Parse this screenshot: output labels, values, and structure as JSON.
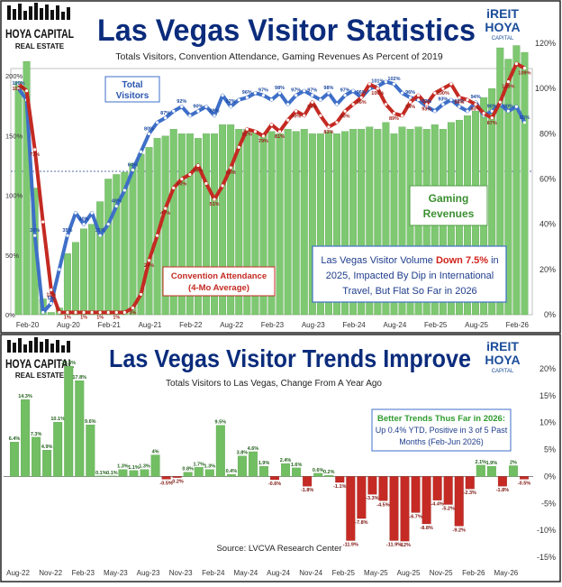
{
  "branding": {
    "logo_main": "HOYA CAPITAL",
    "logo_sub": "REAL ESTATE",
    "ireit_line1": "iREIT",
    "ireit_line2": "HOYA",
    "ireit_sub": "CAPITAL"
  },
  "colors": {
    "title": "#0b2c7c",
    "gaming_green": "#7ec871",
    "gaming_edge": "#4f9c43",
    "visitors_blue": "#3e6fc8",
    "convention_red": "#c42a22",
    "trend_green": "#72be63",
    "trend_red": "#c62a24",
    "annotation": "#1f3d8c",
    "highlight_red": "#d0241c",
    "trend_highlight_green": "#2f9b2f"
  },
  "chart_data": [
    {
      "type": "bar",
      "title": "Las Vegas Visitor Statistics",
      "subtitle": "Totals Visitors, Convention Attendance, Gaming Revenues As Percent of 2019",
      "x_tick_labels": [
        "Feb-20",
        "Aug-20",
        "Feb-21",
        "Aug-21",
        "Feb-22",
        "Aug-22",
        "Feb-23",
        "Aug-23",
        "Feb-24",
        "Aug-24",
        "Feb-25",
        "Aug-25",
        "Feb-26"
      ],
      "left_axis": {
        "ticks": [
          "0%",
          "50%",
          "100%",
          "150%",
          "200%"
        ],
        "range": [
          0,
          200
        ]
      },
      "right_axis": {
        "ticks": [
          "0%",
          "20%",
          "40%",
          "60%",
          "80%",
          "100%",
          "120%"
        ],
        "range": [
          0,
          120
        ]
      },
      "reference_line_left_value": 120,
      "series": [
        {
          "name": "Gaming Revenues",
          "kind": "bar",
          "axis": "right",
          "values": [
            103,
            112,
            56,
            7,
            1,
            3,
            27,
            32,
            38,
            40,
            50,
            60,
            62,
            63,
            67,
            71,
            74,
            78,
            79,
            82,
            80,
            80,
            78,
            80,
            80,
            84,
            84,
            82,
            82,
            81,
            80,
            81,
            80,
            82,
            81,
            82,
            80,
            80,
            81,
            80,
            81,
            82,
            82,
            83,
            82,
            85,
            80,
            83,
            82,
            83,
            82,
            84,
            82,
            85,
            86,
            88,
            90,
            96,
            100,
            118,
            113,
            119,
            116
          ]
        },
        {
          "name": "Total Visitors",
          "kind": "line",
          "axis": "right",
          "values": [
            100,
            95,
            35,
            1,
            5,
            20,
            35,
            45,
            40,
            45,
            35,
            40,
            48,
            55,
            64,
            72,
            80,
            85,
            87,
            90,
            92,
            88,
            90,
            92,
            88,
            97,
            92,
            95,
            96,
            98,
            97,
            95,
            98,
            93,
            97,
            99,
            97,
            95,
            98,
            93,
            97,
            99,
            96,
            100,
            101,
            103,
            102,
            98,
            96,
            95,
            92,
            90,
            93,
            95,
            92,
            90,
            94,
            88,
            90,
            93,
            90,
            92,
            85
          ]
        },
        {
          "name": "Convention Attendance (4-Mo Average)",
          "kind": "line",
          "axis": "right",
          "values": [
            102,
            99,
            73,
            41,
            11,
            1,
            1,
            1,
            1,
            1,
            1,
            1,
            1,
            1,
            3,
            9,
            24,
            35,
            47,
            56,
            60,
            62,
            66,
            58,
            51,
            57,
            65,
            74,
            82,
            81,
            79,
            84,
            81,
            86,
            90,
            88,
            94,
            88,
            83,
            85,
            90,
            93,
            96,
            102,
            100,
            93,
            89,
            88,
            94,
            97,
            93,
            98,
            100,
            102,
            96,
            95,
            93,
            89,
            87,
            94,
            103,
            111,
            109
          ]
        }
      ],
      "annotations": {
        "visitors_label_line1": "Total",
        "visitors_label_line2": "Visitors",
        "gaming_label_line1": "Gaming",
        "gaming_label_line2": "Revenues",
        "convention_label_line1": "Convention Attendance",
        "convention_label_line2": "(4-Mo Average)",
        "box_part1": "Las Vegas Visitor Volume ",
        "box_highlight": "Down 7.5%",
        "box_part2": " in",
        "box_line2": "2025, Impacted By Dip in International",
        "box_line3": "Travel, But Flat So Far in 2026"
      }
    },
    {
      "type": "bar",
      "title": "Las Vegas Visitor Trends Improve",
      "subtitle": "Totals Visitors to Las Vegas, Change From A Year Ago",
      "source": "Source: LVCVA Research Center",
      "x_tick_labels": [
        "Aug-22",
        "Nov-22",
        "Feb-23",
        "May-23",
        "Aug-23",
        "Nov-23",
        "Feb-24",
        "May-24",
        "Aug-24",
        "Nov-24",
        "Feb-25",
        "May-25",
        "Aug-25",
        "Nov-25",
        "Feb-26",
        "May-26"
      ],
      "y_axis": {
        "ticks": [
          "20%",
          "15%",
          "10%",
          "5%",
          "0%",
          "-5%",
          "-10%",
          "-15%"
        ],
        "range": [
          -15,
          20
        ]
      },
      "series": [
        {
          "name": "Change From A Year Ago",
          "values": [
            6.4,
            14.3,
            7.3,
            4.9,
            10.1,
            20.5,
            17.8,
            9.6,
            0.1,
            0.1,
            1.3,
            1.1,
            1.3,
            4.0,
            -0.5,
            -0.2,
            0.8,
            1.7,
            1.3,
            9.5,
            0.4,
            3.8,
            4.6,
            1.9,
            -0.6,
            2.4,
            1.6,
            -1.8,
            0.6,
            0.2,
            -1.1,
            -11.9,
            -7.8,
            -3.3,
            -4.5,
            -11.9,
            -12.0,
            -6.7,
            -8.8,
            -4.4,
            -5.2,
            -9.2,
            -2.3,
            2.1,
            1.9,
            -1.8,
            2.0,
            -0.5
          ]
        }
      ],
      "annotations": {
        "box_title": "Better Trends Thus Far in 2026:",
        "box_line1": "Up 0.4% YTD, Positive in 3 of 5 Past",
        "box_line2": "Months (Feb-Jun 2026)"
      }
    }
  ]
}
